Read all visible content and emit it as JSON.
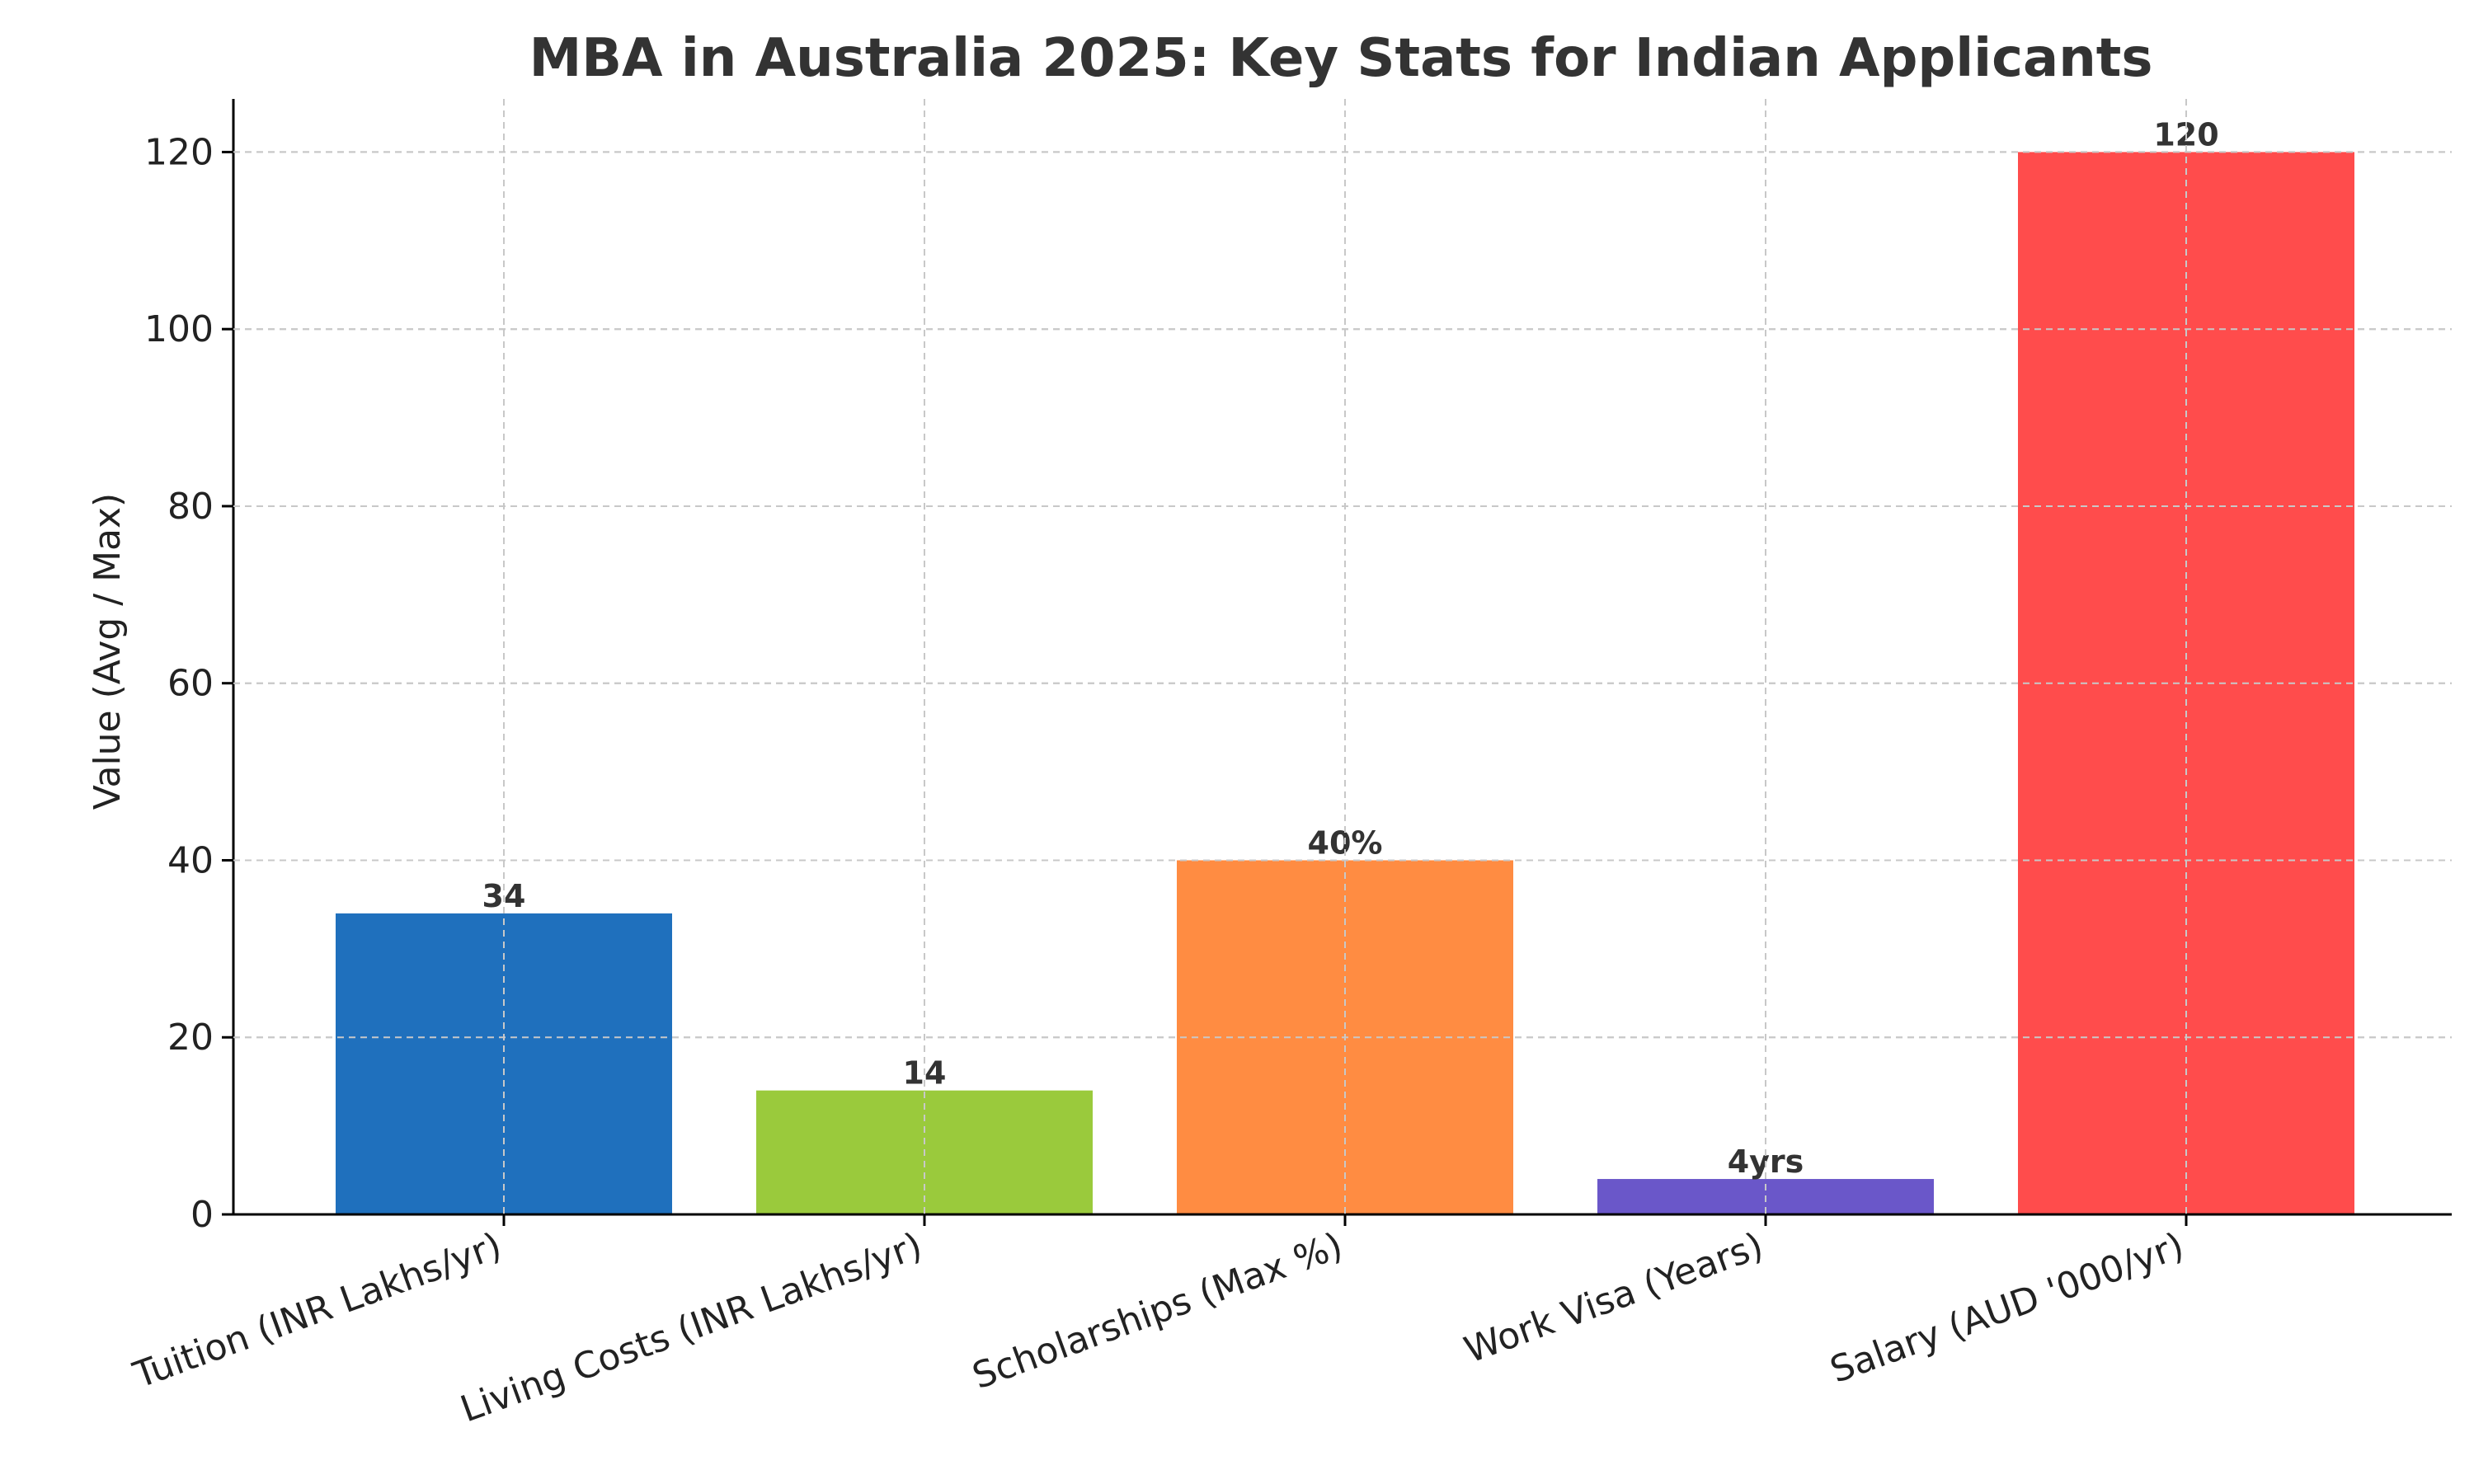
{
  "chart_data": {
    "type": "bar",
    "title": "MBA in Australia 2025: Key Stats for Indian Applicants",
    "xlabel": "",
    "ylabel": "Value (Avg / Max)",
    "ylim": [
      0,
      126
    ],
    "yticks": [
      0,
      20,
      40,
      60,
      80,
      100,
      120
    ],
    "grid": true,
    "categories": [
      "Tuition (INR Lakhs/yr)",
      "Living Costs (INR Lakhs/yr)",
      "Scholarships (Max %)",
      "Work Visa (Years)",
      "Salary (AUD '000/yr)"
    ],
    "values": [
      34,
      14,
      40,
      4,
      120
    ],
    "data_labels": [
      "34",
      "14",
      "40%",
      "4yrs",
      "120"
    ],
    "colors": [
      "#1f70bd",
      "#9aca3c",
      "#ff8c42",
      "#6a57c9",
      "#ff4c4c"
    ]
  }
}
